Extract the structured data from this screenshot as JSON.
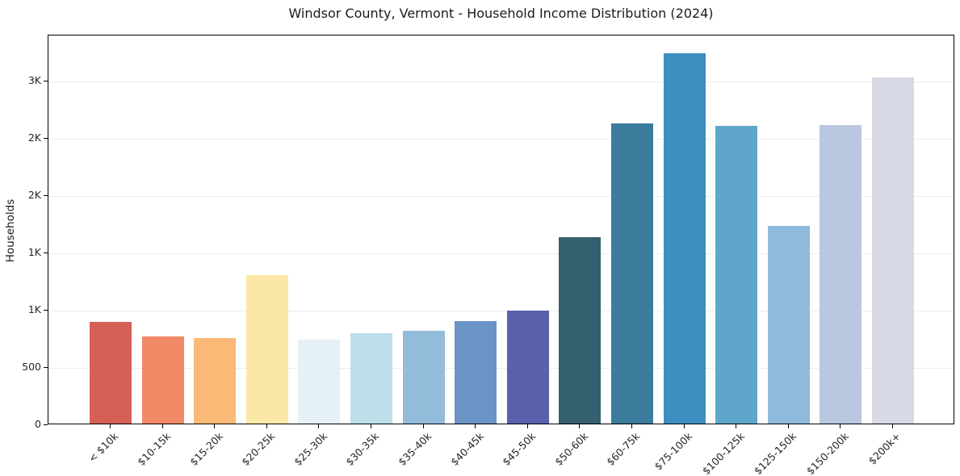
{
  "chart_data": {
    "type": "bar",
    "title": "Windsor County, Vermont - Household Income Distribution (2024)",
    "xlabel": "",
    "ylabel": "Households",
    "categories": [
      "< $10k",
      "$10-15k",
      "$15-20k",
      "$20-25k",
      "$25-30k",
      "$30-35k",
      "$35-40k",
      "$40-45k",
      "$45-50k",
      "$50-60k",
      "$60-75k",
      "$75-100k",
      "$100-125k",
      "$125-150k",
      "$150-200k",
      "$200k+"
    ],
    "values": [
      885,
      760,
      745,
      1295,
      730,
      790,
      810,
      895,
      985,
      1625,
      2620,
      3230,
      2600,
      1725,
      2605,
      3020
    ],
    "bar_colors": [
      "#d65f57",
      "#f18a66",
      "#fbb977",
      "#fce8a6",
      "#e5f1f6",
      "#bedfe9",
      "#93bcdb",
      "#6c93c5",
      "#5a60ab",
      "#35606f",
      "#3b7b9c",
      "#3d8ec1",
      "#5fa7ca",
      "#90badb",
      "#b9c8e0",
      "#d7d9e6"
    ],
    "ylim": [
      0,
      3400
    ],
    "yticks": [
      {
        "value": 0,
        "label": "0"
      },
      {
        "value": 500,
        "label": "500"
      },
      {
        "value": 1000,
        "label": "1K"
      },
      {
        "value": 1500,
        "label": "1K"
      },
      {
        "value": 2000,
        "label": "2K"
      },
      {
        "value": 2500,
        "label": "2K"
      },
      {
        "value": 3000,
        "label": "3K"
      }
    ],
    "grid": "horizontal",
    "legend": "none",
    "background_color": "#ffffff",
    "gridline_color": "#ececec",
    "spine_color": "#000000"
  }
}
